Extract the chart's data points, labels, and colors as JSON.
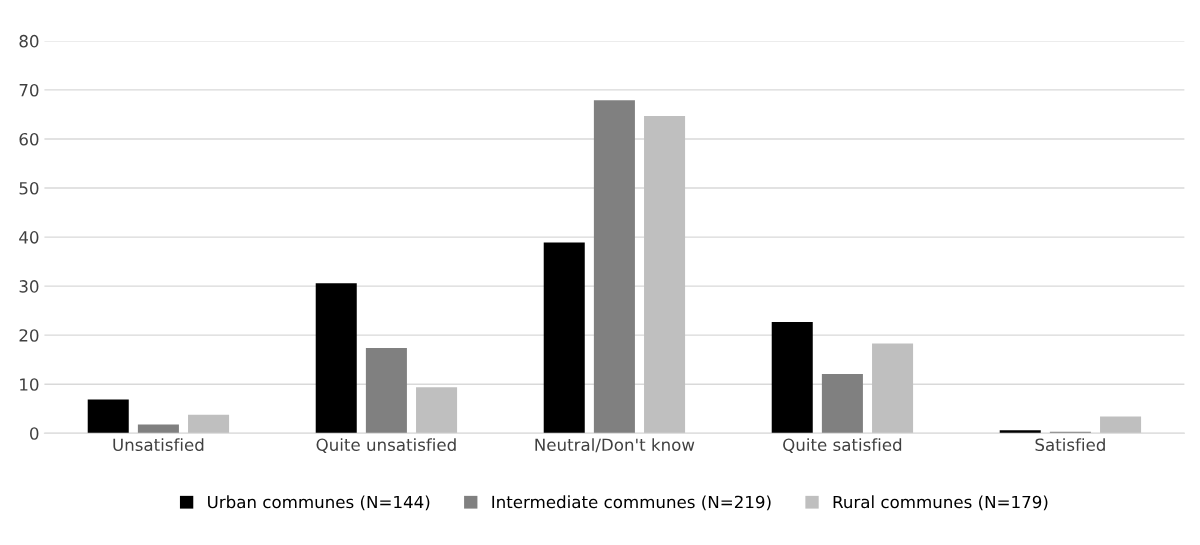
{
  "chart_data": {
    "type": "bar",
    "categories": [
      "Unsatisfied",
      "Quite unsatisfied",
      "Neutral/Don't know",
      "Quite satisfied",
      "Satisfied"
    ],
    "series": [
      {
        "name": "Urban communes (N=144)",
        "color": "#000000",
        "values": [
          6.9,
          30.6,
          38.9,
          22.7,
          0.6
        ]
      },
      {
        "name": "Intermediate communes (N=219)",
        "color": "#808080",
        "values": [
          1.8,
          17.4,
          67.9,
          12.1,
          0.3
        ]
      },
      {
        "name": "Rural communes (N=179)",
        "color": "#bfbfbf",
        "values": [
          3.8,
          9.4,
          64.7,
          18.3,
          3.4
        ]
      }
    ],
    "ylim": [
      0,
      80
    ],
    "yticks": [
      0,
      10,
      20,
      30,
      40,
      50,
      60,
      70,
      80
    ],
    "grid": "y",
    "legend": "bottom"
  }
}
